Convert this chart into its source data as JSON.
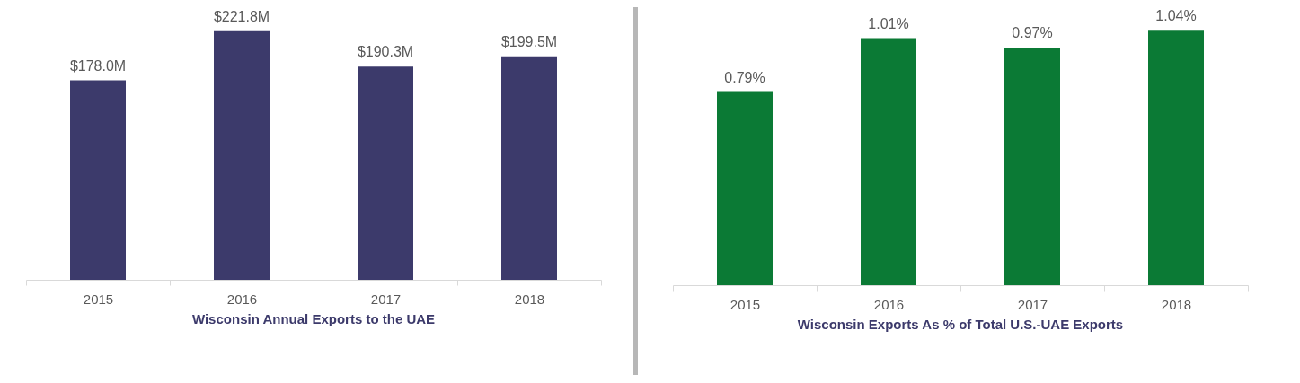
{
  "chart_data": [
    {
      "type": "bar",
      "title": "Wisconsin Annual Exports to the UAE",
      "categories": [
        "2015",
        "2016",
        "2017",
        "2018"
      ],
      "values": [
        178.0,
        221.8,
        190.3,
        199.5
      ],
      "value_labels": [
        "$178.0M",
        "$221.8M",
        "$190.3M",
        "$199.5M"
      ],
      "color": "#3c3a6b",
      "tick_labels": "x"
    },
    {
      "type": "bar",
      "title": "Wisconsin Exports As % of Total U.S.-UAE Exports",
      "categories": [
        "2015",
        "2016",
        "2017",
        "2018"
      ],
      "values": [
        0.79,
        1.01,
        0.97,
        1.04
      ],
      "value_labels": [
        "0.79%",
        "1.01%",
        "0.97%",
        "1.04%"
      ],
      "color": "#0b7a35",
      "tick_labels": "x"
    }
  ]
}
